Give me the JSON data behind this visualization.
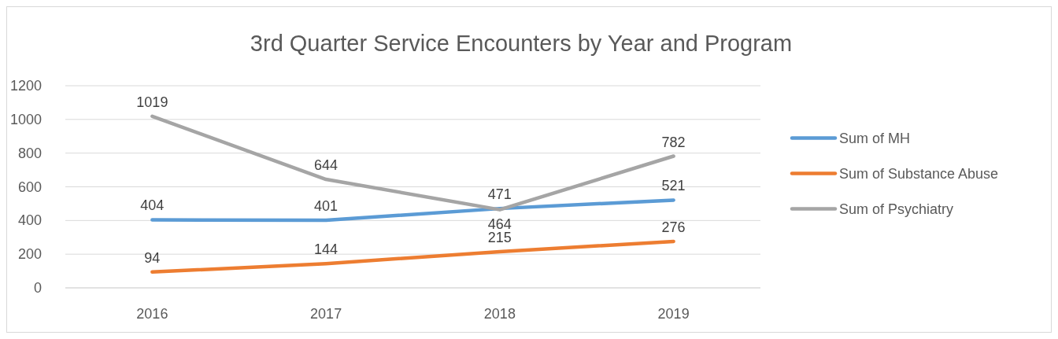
{
  "chart_data": {
    "type": "line",
    "title": "3rd Quarter Service Encounters by Year and Program",
    "categories": [
      "2016",
      "2017",
      "2018",
      "2019"
    ],
    "series": [
      {
        "name": "Sum of MH",
        "color": "#5b9bd5",
        "values": [
          404,
          401,
          471,
          521
        ]
      },
      {
        "name": "Sum of Substance Abuse",
        "color": "#ed7d31",
        "values": [
          94,
          144,
          215,
          276
        ]
      },
      {
        "name": "Sum of Psychiatry",
        "color": "#a5a5a5",
        "values": [
          1019,
          644,
          464,
          782
        ]
      }
    ],
    "ylim": [
      0,
      1200
    ],
    "yticks": [
      0,
      200,
      400,
      600,
      800,
      1000,
      1200
    ],
    "grid": "y",
    "legend": "right",
    "data_labels": true,
    "marker": "none",
    "line_style": "solid"
  }
}
